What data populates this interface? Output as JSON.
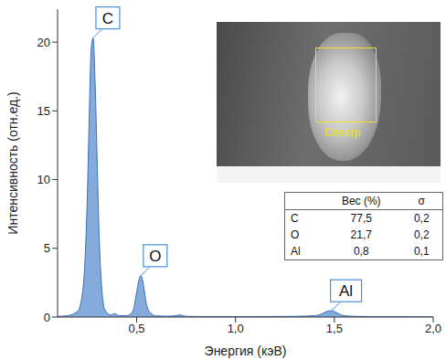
{
  "chart_data": {
    "type": "area",
    "x_label": "Энергия (кэВ)",
    "y_label": "Интенсивность (отн.ед.)",
    "xlim": [
      0.1,
      2.0
    ],
    "xticks": [
      {
        "value": 0.5,
        "label": "0,5"
      },
      {
        "value": 1.0,
        "label": "1,0"
      },
      {
        "value": 1.5,
        "label": "1,5"
      },
      {
        "value": 2.0,
        "label": "2,0"
      }
    ],
    "ylim": [
      0,
      22.4
    ],
    "yticks": [
      0,
      5,
      10,
      15,
      20
    ],
    "grid": false,
    "color": "#5b8fd0",
    "x": [
      0.1,
      0.15,
      0.2,
      0.22,
      0.24,
      0.25,
      0.26,
      0.27,
      0.28,
      0.29,
      0.3,
      0.31,
      0.32,
      0.34,
      0.37,
      0.39,
      0.41,
      0.45,
      0.48,
      0.5,
      0.51,
      0.52,
      0.53,
      0.54,
      0.55,
      0.57,
      0.6,
      0.65,
      0.7,
      0.72,
      0.75,
      0.8,
      0.9,
      1.0,
      1.1,
      1.2,
      1.3,
      1.4,
      1.44,
      1.46,
      1.48,
      1.49,
      1.5,
      1.52,
      1.55,
      1.6,
      1.7,
      1.8,
      1.9,
      2.0
    ],
    "values": [
      0.05,
      0.1,
      0.4,
      1.2,
      4.5,
      8.5,
      14.5,
      19.5,
      20.3,
      17.0,
      11.5,
      6.0,
      2.8,
      0.5,
      0.15,
      0.25,
      0.1,
      0.1,
      0.4,
      1.8,
      2.6,
      3.0,
      2.7,
      1.8,
      0.9,
      0.3,
      0.08,
      0.06,
      0.1,
      0.15,
      0.05,
      0.04,
      0.03,
      0.03,
      0.03,
      0.04,
      0.05,
      0.1,
      0.25,
      0.4,
      0.45,
      0.45,
      0.4,
      0.25,
      0.1,
      0.05,
      0.03,
      0.03,
      0.02,
      0.02
    ],
    "annotations": [
      {
        "text": "C",
        "x": 0.28,
        "y": 20.3
      },
      {
        "text": "O",
        "x": 0.52,
        "y": 3.0
      },
      {
        "text": "Al",
        "x": 1.485,
        "y": 0.45
      }
    ]
  },
  "inset": {
    "image_label": "Спектр",
    "table": {
      "columns": [
        "Вес (%)",
        "σ"
      ],
      "rows": [
        {
          "element": "C",
          "values": [
            "77,5",
            "0,2"
          ]
        },
        {
          "element": "O",
          "values": [
            "21,7",
            "0,2"
          ]
        },
        {
          "element": "Al",
          "values": [
            "0,8",
            "0,1"
          ]
        }
      ]
    }
  }
}
